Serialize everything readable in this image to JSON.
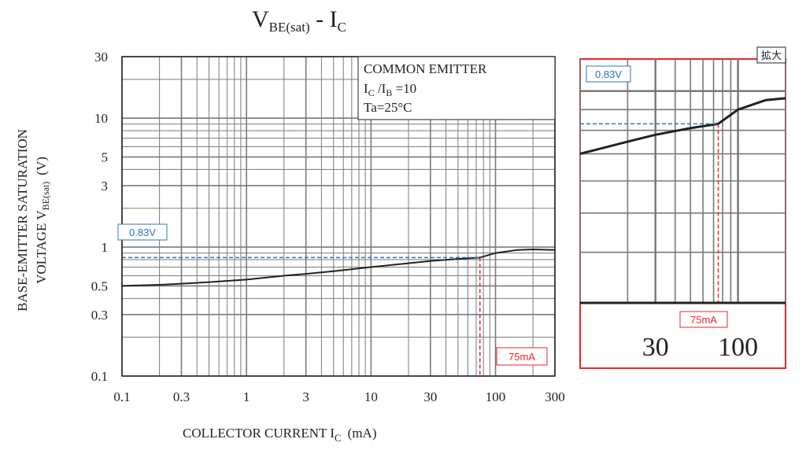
{
  "chart_data": {
    "type": "line",
    "title": "VBE(sat) - IC",
    "title_parts": {
      "main": "V",
      "main_sub": "BE(sat)",
      "sep": " - I",
      "tail_sub": "C"
    },
    "xlabel": "COLLECTOR CURRENT I",
    "xlabel_sub": "C",
    "xlabel_unit": "(mA)",
    "ylabel_line1": "BASE-EMITTER SATURATION",
    "ylabel_line2": "VOLTAGE V",
    "ylabel_sub": "BE(sat)",
    "ylabel_unit": "(V)",
    "x_scale": "log",
    "y_scale": "log",
    "xlim": [
      0.1,
      300
    ],
    "ylim": [
      0.1,
      30
    ],
    "x_ticks": [
      0.1,
      0.3,
      1,
      3,
      10,
      30,
      100,
      300
    ],
    "x_tick_labels": [
      "0.1",
      "0.3",
      "1",
      "3",
      "10",
      "30",
      "100",
      "300"
    ],
    "y_ticks": [
      0.1,
      0.3,
      0.5,
      1,
      3,
      5,
      10,
      30
    ],
    "y_tick_labels": [
      "0.1",
      "0.3",
      "0.5",
      "1",
      "3",
      "5",
      "10",
      "30"
    ],
    "grid": true,
    "series": [
      {
        "x": [
          0.1,
          0.2,
          0.3,
          0.5,
          1,
          2,
          3,
          5,
          10,
          20,
          30,
          50,
          75,
          100,
          150,
          200,
          300
        ],
        "y": [
          0.5,
          0.51,
          0.52,
          0.535,
          0.56,
          0.6,
          0.62,
          0.65,
          0.7,
          0.75,
          0.78,
          0.81,
          0.83,
          0.9,
          0.95,
          0.96,
          0.95
        ]
      }
    ],
    "annotations": {
      "conditions": {
        "line1": "COMMON EMITTER",
        "line2_a": "I",
        "line2_a_sub": "C",
        "line2_b": " /I",
        "line2_b_sub": "B",
        "line2_c": " =10",
        "line3": "Ta=25°C"
      },
      "marker_voltage": {
        "label": "0.83V",
        "value": 0.83
      },
      "marker_current": {
        "label": "75mA",
        "value": 75
      }
    },
    "inset": {
      "tag": "拡大",
      "xlim": [
        10,
        200
      ],
      "ylim": [
        0.3,
        1.2
      ],
      "x_tick_labels": [
        "30",
        "100"
      ],
      "x_ticks": [
        30,
        100
      ],
      "voltage_label": "0.83V",
      "current_label": "75mA"
    }
  },
  "colors": {
    "curve": "#222222",
    "grid": "#7a7a7a",
    "voltage_marker": "#2e75b6",
    "current_marker": "#e8262b",
    "inset_border": "#e8262b"
  }
}
